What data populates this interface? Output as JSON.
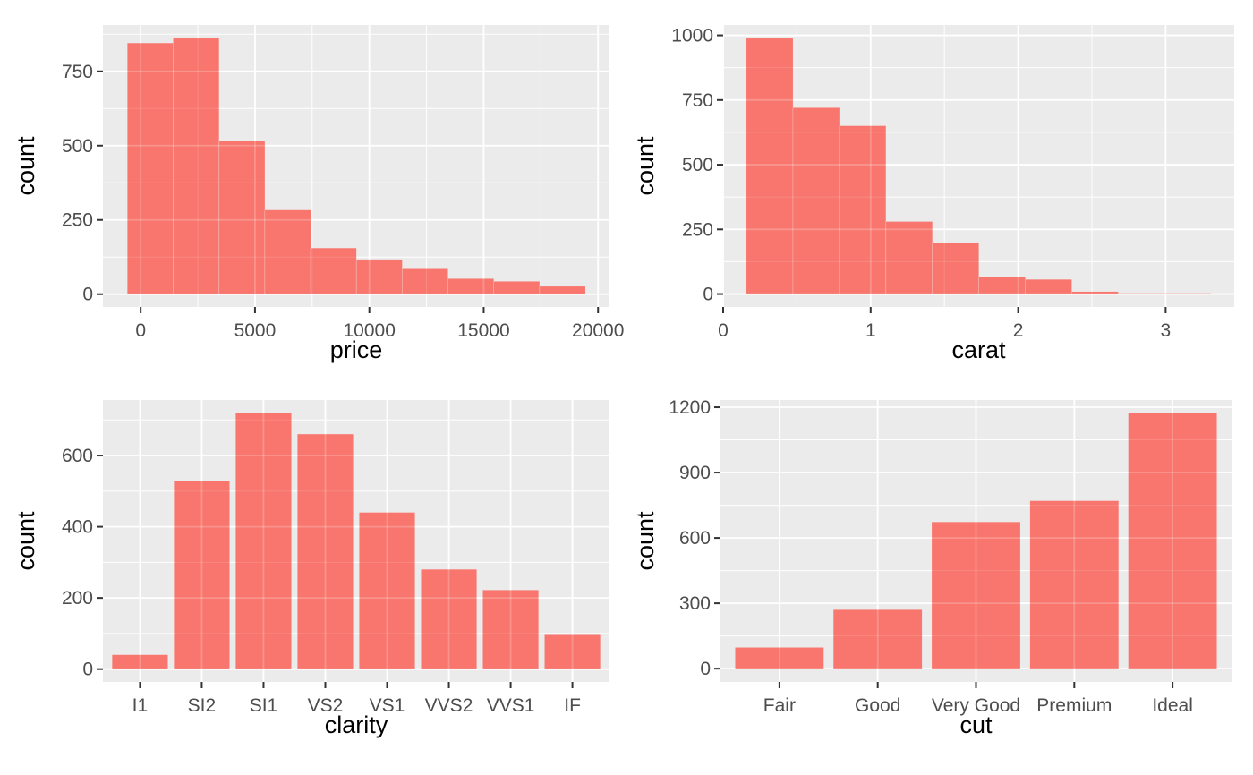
{
  "figure": {
    "description": "2x2 grid of ggplot-style count charts",
    "ylabel_shared": "count"
  },
  "style": {
    "bar_fill": "#F8766D",
    "panel_bg": "#EBEBEB",
    "grid_color": "#FFFFFF",
    "tick_label_color": "#4D4D4D",
    "axis_title_color": "#000000",
    "tick_mark_color": "#333333",
    "background": "#FFFFFF"
  },
  "chart_data": [
    {
      "id": "price-histogram",
      "type": "bar",
      "subtype": "histogram",
      "title": "",
      "xlabel": "price",
      "ylabel": "count",
      "bin_edges": [
        -578,
        1424,
        3426,
        5428,
        7430,
        9432,
        11434,
        13436,
        15438,
        17440,
        19442
      ],
      "values": [
        845,
        862,
        515,
        283,
        155,
        117,
        85,
        52,
        43,
        26
      ],
      "x_ticks": [
        0,
        5000,
        10000,
        15000,
        20000
      ],
      "x_minor": [
        2500,
        7500,
        12500,
        17500
      ],
      "xlim": [
        -1650,
        20500
      ],
      "y_ticks": [
        0,
        250,
        500,
        750
      ],
      "y_minor": [
        125,
        375,
        625,
        875
      ],
      "ylim": [
        -43,
        906
      ],
      "grid": true,
      "legend": "none"
    },
    {
      "id": "carat-histogram",
      "type": "bar",
      "subtype": "histogram",
      "title": "",
      "xlabel": "carat",
      "ylabel": "count",
      "bin_edges": [
        0.158,
        0.473,
        0.788,
        1.103,
        1.418,
        1.733,
        2.048,
        2.363,
        2.678,
        2.993,
        3.308
      ],
      "values": [
        988,
        720,
        650,
        280,
        198,
        65,
        56,
        9,
        3,
        3
      ],
      "x_ticks": [
        0,
        1,
        2,
        3
      ],
      "x_minor": [
        0.5,
        1.5,
        2.5
      ],
      "xlim": [
        0,
        3.465
      ],
      "y_ticks": [
        0,
        250,
        500,
        750,
        1000
      ],
      "y_minor": [
        125,
        375,
        625,
        875
      ],
      "ylim": [
        -50,
        1040
      ],
      "grid": true,
      "legend": "none"
    },
    {
      "id": "clarity-bar-chart",
      "type": "bar",
      "subtype": "categorical",
      "title": "",
      "xlabel": "clarity",
      "ylabel": "count",
      "categories": [
        "I1",
        "SI2",
        "SI1",
        "VS2",
        "VS1",
        "VVS2",
        "VVS1",
        "IF"
      ],
      "values": [
        40,
        528,
        720,
        660,
        440,
        280,
        222,
        96
      ],
      "y_ticks": [
        0,
        200,
        400,
        600
      ],
      "y_minor": [
        100,
        300,
        500,
        700
      ],
      "ylim": [
        -36,
        756
      ],
      "grid": true,
      "legend": "none"
    },
    {
      "id": "cut-bar-chart",
      "type": "bar",
      "subtype": "categorical",
      "title": "",
      "xlabel": "cut",
      "ylabel": "count",
      "categories": [
        "Fair",
        "Good",
        "Very Good",
        "Premium",
        "Ideal"
      ],
      "values": [
        97,
        270,
        673,
        770,
        1172
      ],
      "y_ticks": [
        0,
        300,
        600,
        900,
        1200
      ],
      "y_minor": [
        150,
        450,
        750,
        1050
      ],
      "ylim": [
        -61,
        1233
      ],
      "grid": true,
      "legend": "none"
    }
  ]
}
